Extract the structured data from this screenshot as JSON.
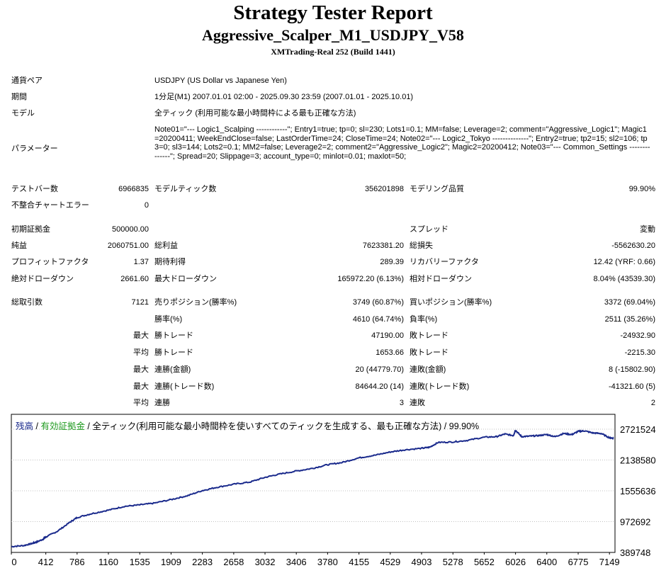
{
  "report": {
    "title": "Strategy Tester Report",
    "ea_name": "Aggressive_Scalper_M1_USDJPY_V58",
    "broker": "XMTrading-Real 252 (Build 1441)"
  },
  "info": {
    "symbol_label": "通貨ペア",
    "symbol_value": "USDJPY (US Dollar vs Japanese Yen)",
    "period_label": "期間",
    "period_value": "1分足(M1) 2007.01.01 02:00 - 2025.09.30 23:59 (2007.01.01 - 2025.10.01)",
    "model_label": "モデル",
    "model_value": "全ティック (利用可能な最小時間枠による最も正確な方法)",
    "params_label": "パラメーター",
    "params_value": "Note01=\"--- Logic1_Scalping ------------\"; Entry1=true; tp=0; sl=230; Lots1=0.1; MM=false; Leverage=2; comment=\"Aggressive_Logic1\"; Magic1=20200411; WeekEndClose=false; LastOrderTime=24; CloseTime=24; Note02=\"--- Logic2_Tokyo --------------\"; Entry2=true; tp2=15; sl2=106; tp3=0; sl3=144; Lots2=0.1; MM2=false; Leverage2=2; comment2=\"Aggressive_Logic2\"; Magic2=20200412; Note03=\"--- Common_Settings --------------\"; Spread=20; Slippage=3; account_type=0; minlot=0.01; maxlot=50;"
  },
  "stats": {
    "bars_label": "テストバー数",
    "bars_value": "6966835",
    "ticks_label": "モデルティック数",
    "ticks_value": "356201898",
    "quality_label": "モデリング品質",
    "quality_value": "99.90%",
    "mismatch_label": "不整合チャートエラー",
    "mismatch_value": "0",
    "deposit_label": "初期証拠金",
    "deposit_value": "500000.00",
    "spread_label": "スプレッド",
    "spread_value": "変動",
    "netprofit_label": "純益",
    "netprofit_value": "2060751.00",
    "grossprofit_label": "総利益",
    "grossprofit_value": "7623381.20",
    "grossloss_label": "総損失",
    "grossloss_value": "-5562630.20",
    "pf_label": "プロフィットファクタ",
    "pf_value": "1.37",
    "payoff_label": "期待利得",
    "payoff_value": "289.39",
    "recovery_label": "リカバリーファクタ",
    "recovery_value": "12.42 (YRF: 0.66)",
    "absdd_label": "絶対ドローダウン",
    "absdd_value": "2661.60",
    "maxdd_label": "最大ドローダウン",
    "maxdd_value": "165972.20 (6.13%)",
    "reldd_label": "相対ドローダウン",
    "reldd_value": "8.04% (43539.30)",
    "trades_label": "総取引数",
    "trades_value": "7121",
    "short_label": "売りポジション(勝率%)",
    "short_value": "3749 (60.87%)",
    "long_label": "買いポジション(勝率%)",
    "long_value": "3372 (69.04%)",
    "winrate_label": "勝率(%)",
    "winrate_value": "4610 (64.74%)",
    "lossrate_label": "負率(%)",
    "lossrate_value": "2511 (35.26%)",
    "max_word": "最大",
    "avg_word": "平均",
    "largest_win_label": "勝トレード",
    "largest_win_value": "47190.00",
    "largest_loss_label": "敗トレード",
    "largest_loss_value": "-24932.90",
    "avg_win_label": "勝トレード",
    "avg_win_value": "1653.66",
    "avg_loss_label": "敗トレード",
    "avg_loss_value": "-2215.30",
    "max_consec_win_amt_label": "連勝(金額)",
    "max_consec_win_amt_value": "20 (44779.70)",
    "max_consec_loss_amt_label": "連敗(金額)",
    "max_consec_loss_amt_value": "8 (-15802.90)",
    "max_consec_win_cnt_label": "連勝(トレード数)",
    "max_consec_win_cnt_value": "84644.20 (14)",
    "max_consec_loss_cnt_label": "連敗(トレード数)",
    "max_consec_loss_cnt_value": "-41321.60 (5)",
    "avg_consec_win_label": "連勝",
    "avg_consec_win_value": "3",
    "avg_consec_loss_label": "連敗",
    "avg_consec_loss_value": "2"
  },
  "chart_legend": {
    "balance": "残高",
    "sep1": " / ",
    "equity": "有効証拠金",
    "rest": " / 全ティック(利用可能な最小時間枠を使いすべてのティックを生成する、最も正確な方法) / 99.90%"
  },
  "colors": {
    "balance_line": "#1a2a8c",
    "equity_label": "#1f9a1f",
    "grid": "#c0c0c0"
  },
  "chart_data": {
    "type": "line",
    "title": "",
    "xlabel": "",
    "ylabel": "",
    "x_ticks": [
      0,
      412,
      786,
      1160,
      1535,
      1909,
      2283,
      2658,
      3032,
      3406,
      3780,
      4155,
      4529,
      4903,
      5278,
      5652,
      6026,
      6400,
      6775,
      7149
    ],
    "y_ticks": [
      389748,
      972692,
      1555636,
      2138580,
      2721524
    ],
    "xlim": [
      0,
      7215
    ],
    "ylim": [
      389748,
      2721524
    ],
    "grid": true,
    "series": [
      {
        "x": [
          0,
          150,
          250,
          300,
          380,
          412,
          550,
          700,
          786,
          950,
          1160,
          1350,
          1535,
          1700,
          1909,
          2100,
          2283,
          2450,
          2658,
          2850,
          3032,
          3200,
          3406,
          3600,
          3780,
          3950,
          4155,
          4350,
          4529,
          4700,
          4903,
          5000,
          5100,
          5278,
          5450,
          5652,
          5800,
          5900,
          6000,
          6026,
          6100,
          6200,
          6300,
          6400,
          6500,
          6600,
          6700,
          6775,
          6850,
          6950,
          7050,
          7149,
          7200
        ],
        "y": [
          500000,
          520000,
          560000,
          585000,
          640000,
          680000,
          790000,
          960000,
          1050000,
          1120000,
          1190000,
          1260000,
          1290000,
          1320000,
          1390000,
          1460000,
          1560000,
          1620000,
          1680000,
          1720000,
          1810000,
          1870000,
          1930000,
          1980000,
          2050000,
          2090000,
          2180000,
          2230000,
          2290000,
          2330000,
          2360000,
          2380000,
          2470000,
          2480000,
          2510000,
          2570000,
          2580000,
          2630000,
          2600000,
          2700000,
          2580000,
          2590000,
          2600000,
          2620000,
          2580000,
          2640000,
          2620000,
          2680000,
          2690000,
          2650000,
          2640000,
          2560000,
          2550000
        ]
      }
    ]
  }
}
